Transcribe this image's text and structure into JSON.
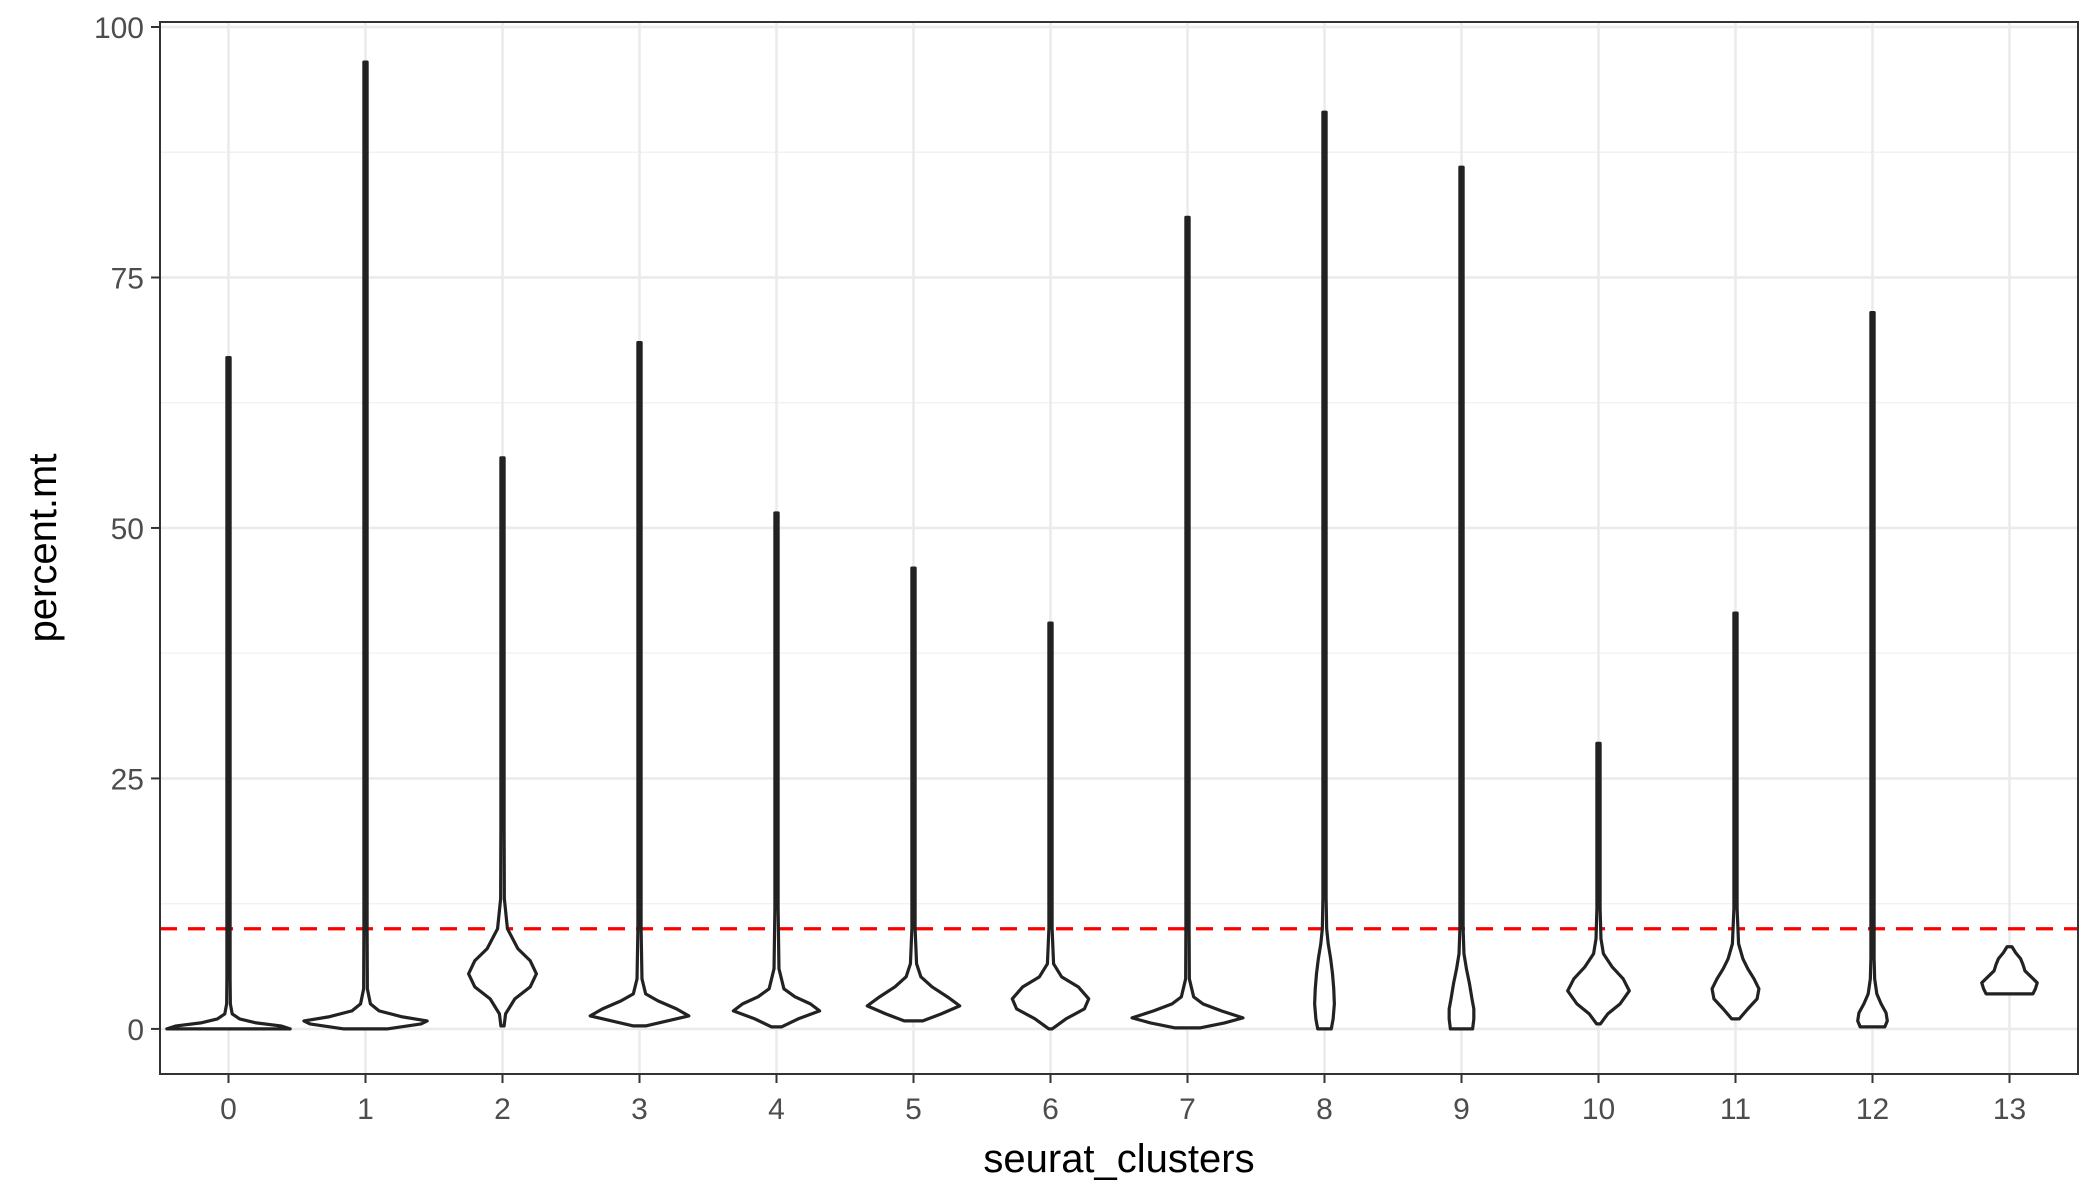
{
  "chart_data": {
    "type": "violin",
    "xlabel": "seurat_clusters",
    "ylabel": "percent.mt",
    "ylim": [
      -4.5,
      100.5
    ],
    "yticks": [
      0,
      25,
      50,
      75,
      100
    ],
    "grid": true,
    "threshold_line": {
      "y": 10,
      "color": "#ff0000",
      "style": "dashed"
    },
    "violin_color": "#222222",
    "categories": [
      "0",
      "1",
      "2",
      "3",
      "4",
      "5",
      "6",
      "7",
      "8",
      "9",
      "10",
      "11",
      "12",
      "13"
    ],
    "violins": [
      {
        "cluster": "0",
        "min": 0,
        "max": 67,
        "profile": [
          [
            0,
            1.0
          ],
          [
            0.3,
            0.85
          ],
          [
            0.6,
            0.45
          ],
          [
            1.0,
            0.18
          ],
          [
            1.5,
            0.06
          ],
          [
            2.5,
            0.03
          ],
          [
            5,
            0.015
          ],
          [
            10,
            0.01
          ],
          [
            20,
            0.008
          ],
          [
            67,
            0.005
          ]
        ]
      },
      {
        "cluster": "1",
        "min": 0,
        "max": 96.5,
        "profile": [
          [
            0,
            0.35
          ],
          [
            0.5,
            0.9
          ],
          [
            0.8,
            1.0
          ],
          [
            1.2,
            0.6
          ],
          [
            1.8,
            0.22
          ],
          [
            2.5,
            0.08
          ],
          [
            4,
            0.03
          ],
          [
            10,
            0.012
          ],
          [
            30,
            0.008
          ],
          [
            96.5,
            0.005
          ]
        ]
      },
      {
        "cluster": "2",
        "min": 0.3,
        "max": 57,
        "profile": [
          [
            0.3,
            0.02
          ],
          [
            1.5,
            0.05
          ],
          [
            3,
            0.2
          ],
          [
            4.2,
            0.45
          ],
          [
            5.5,
            0.55
          ],
          [
            6.8,
            0.45
          ],
          [
            8,
            0.25
          ],
          [
            10,
            0.08
          ],
          [
            13,
            0.03
          ],
          [
            20,
            0.015
          ],
          [
            57,
            0.005
          ]
        ]
      },
      {
        "cluster": "3",
        "min": 0.3,
        "max": 68.5,
        "profile": [
          [
            0.3,
            0.1
          ],
          [
            0.8,
            0.45
          ],
          [
            1.3,
            0.8
          ],
          [
            2.0,
            0.6
          ],
          [
            2.8,
            0.3
          ],
          [
            3.5,
            0.1
          ],
          [
            5,
            0.04
          ],
          [
            10,
            0.02
          ],
          [
            30,
            0.01
          ],
          [
            68.5,
            0.005
          ]
        ]
      },
      {
        "cluster": "4",
        "min": 0.2,
        "max": 51.5,
        "profile": [
          [
            0.2,
            0.08
          ],
          [
            1.0,
            0.35
          ],
          [
            1.8,
            0.7
          ],
          [
            2.5,
            0.55
          ],
          [
            3.2,
            0.3
          ],
          [
            4,
            0.12
          ],
          [
            6,
            0.04
          ],
          [
            12,
            0.02
          ],
          [
            25,
            0.01
          ],
          [
            51.5,
            0.005
          ]
        ]
      },
      {
        "cluster": "5",
        "min": 0.8,
        "max": 46,
        "profile": [
          [
            0.8,
            0.15
          ],
          [
            1.5,
            0.45
          ],
          [
            2.3,
            0.75
          ],
          [
            3.2,
            0.55
          ],
          [
            4.2,
            0.3
          ],
          [
            5.2,
            0.12
          ],
          [
            6.5,
            0.05
          ],
          [
            10,
            0.02
          ],
          [
            20,
            0.01
          ],
          [
            46,
            0.005
          ]
        ]
      },
      {
        "cluster": "6",
        "min": 0,
        "max": 40.5,
        "profile": [
          [
            0,
            0.02
          ],
          [
            1.0,
            0.25
          ],
          [
            2.0,
            0.55
          ],
          [
            3.0,
            0.62
          ],
          [
            4.2,
            0.45
          ],
          [
            5.2,
            0.18
          ],
          [
            6.5,
            0.05
          ],
          [
            10,
            0.02
          ],
          [
            20,
            0.01
          ],
          [
            40.5,
            0.005
          ]
        ]
      },
      {
        "cluster": "7",
        "min": 0.1,
        "max": 81,
        "profile": [
          [
            0.1,
            0.2
          ],
          [
            0.6,
            0.6
          ],
          [
            1.1,
            0.9
          ],
          [
            1.8,
            0.55
          ],
          [
            2.5,
            0.25
          ],
          [
            3.2,
            0.1
          ],
          [
            5,
            0.03
          ],
          [
            10,
            0.015
          ],
          [
            30,
            0.008
          ],
          [
            81,
            0.005
          ]
        ]
      },
      {
        "cluster": "8",
        "min": 0,
        "max": 91.5,
        "profile": [
          [
            0,
            0.11
          ],
          [
            1,
            0.14
          ],
          [
            2.5,
            0.16
          ],
          [
            4,
            0.15
          ],
          [
            5.5,
            0.13
          ],
          [
            7,
            0.1
          ],
          [
            8.5,
            0.06
          ],
          [
            10,
            0.035
          ],
          [
            13,
            0.02
          ],
          [
            20,
            0.012
          ],
          [
            91.5,
            0.005
          ]
        ]
      },
      {
        "cluster": "9",
        "min": 0,
        "max": 86,
        "profile": [
          [
            0,
            0.18
          ],
          [
            1,
            0.2
          ],
          [
            2,
            0.2
          ],
          [
            3,
            0.17
          ],
          [
            4.5,
            0.13
          ],
          [
            6,
            0.08
          ],
          [
            7.5,
            0.04
          ],
          [
            10,
            0.02
          ],
          [
            20,
            0.01
          ],
          [
            86,
            0.005
          ]
        ]
      },
      {
        "cluster": "10",
        "min": 0.5,
        "max": 28.5,
        "profile": [
          [
            0.5,
            0.03
          ],
          [
            1.5,
            0.15
          ],
          [
            2.5,
            0.35
          ],
          [
            3.8,
            0.5
          ],
          [
            5,
            0.4
          ],
          [
            6.2,
            0.22
          ],
          [
            7.5,
            0.08
          ],
          [
            9,
            0.04
          ],
          [
            12,
            0.02
          ],
          [
            28.5,
            0.005
          ]
        ]
      },
      {
        "cluster": "11",
        "min": 1,
        "max": 41.5,
        "profile": [
          [
            1,
            0.06
          ],
          [
            2,
            0.2
          ],
          [
            3,
            0.35
          ],
          [
            4,
            0.38
          ],
          [
            5,
            0.3
          ],
          [
            6,
            0.2
          ],
          [
            7,
            0.12
          ],
          [
            8.5,
            0.05
          ],
          [
            12,
            0.02
          ],
          [
            41.5,
            0.005
          ]
        ]
      },
      {
        "cluster": "12",
        "min": 0.2,
        "max": 71.5,
        "profile": [
          [
            0.2,
            0.2
          ],
          [
            0.8,
            0.24
          ],
          [
            1.6,
            0.22
          ],
          [
            2.5,
            0.14
          ],
          [
            3.5,
            0.07
          ],
          [
            5,
            0.035
          ],
          [
            7,
            0.02
          ],
          [
            12,
            0.01
          ],
          [
            30,
            0.008
          ],
          [
            71.5,
            0.005
          ]
        ]
      },
      {
        "cluster": "13",
        "min": 3.5,
        "max": 8.2,
        "profile": [
          [
            3.5,
            0.38
          ],
          [
            4.0,
            0.42
          ],
          [
            4.6,
            0.45
          ],
          [
            5.2,
            0.35
          ],
          [
            5.8,
            0.25
          ],
          [
            6.4,
            0.22
          ],
          [
            7.0,
            0.18
          ],
          [
            7.6,
            0.1
          ],
          [
            8.2,
            0.04
          ]
        ]
      }
    ]
  }
}
